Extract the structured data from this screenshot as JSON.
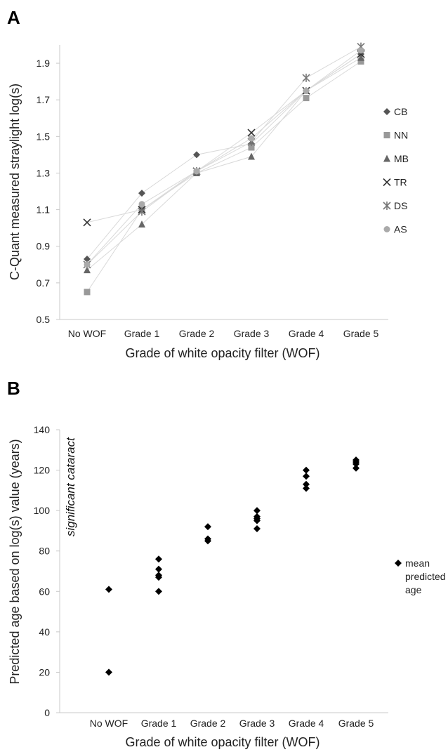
{
  "chart_data": [
    {
      "panel": "A",
      "type": "line",
      "categories": [
        "No WOF",
        "Grade 1",
        "Grade 2",
        "Grade 3",
        "Grade 4",
        "Grade 5"
      ],
      "xlabel": "Grade of white opacity filter (WOF)",
      "ylabel": "C-Quant measured straylight log(s)",
      "ylim": [
        0.5,
        2.0
      ],
      "yticks": [
        "0.5",
        "0.7",
        "0.9",
        "1.1",
        "1.3",
        "1.5",
        "1.7",
        "1.9"
      ],
      "grid": false,
      "legend_position": "right",
      "series": [
        {
          "name": "CB",
          "marker": "diamond",
          "color": "#555555",
          "values": [
            0.83,
            1.19,
            1.4,
            1.46,
            1.75,
            1.95
          ]
        },
        {
          "name": "NN",
          "marker": "square",
          "color": "#999999",
          "values": [
            0.65,
            1.1,
            1.3,
            1.44,
            1.71,
            1.91
          ]
        },
        {
          "name": "MB",
          "marker": "triangle",
          "color": "#666666",
          "values": [
            0.77,
            1.02,
            1.3,
            1.39,
            1.75,
            1.93
          ]
        },
        {
          "name": "TR",
          "marker": "x",
          "color": "#333333",
          "values": [
            1.03,
            1.1,
            1.31,
            1.52,
            1.75,
            1.95
          ]
        },
        {
          "name": "DS",
          "marker": "star",
          "color": "#777777",
          "values": [
            0.8,
            1.09,
            1.31,
            1.47,
            1.82,
            1.99
          ]
        },
        {
          "name": "AS",
          "marker": "circle",
          "color": "#aaaaaa",
          "values": [
            0.8,
            1.13,
            1.31,
            1.49,
            1.75,
            1.97
          ]
        }
      ]
    },
    {
      "panel": "B",
      "type": "scatter",
      "categories": [
        "No WOF",
        "Grade 1",
        "Grade 2",
        "Grade 3",
        "Grade 4",
        "Grade 5"
      ],
      "xlabel": "Grade of white opacity filter (WOF)",
      "ylabel": "Predicted age  based on log(s) value (years)",
      "ylim": [
        0,
        140
      ],
      "yticks": [
        "0",
        "20",
        "40",
        "60",
        "80",
        "100",
        "120",
        "140"
      ],
      "grid": false,
      "annotation": "significant cataract",
      "legend_position": "right",
      "series": [
        {
          "name": "mean predicted age",
          "name_lines": [
            "mean",
            "predicted",
            "age"
          ],
          "marker": "diamond",
          "color": "#000000",
          "points": [
            {
              "x": "No WOF",
              "y": 61
            },
            {
              "x": "No WOF",
              "y": 20
            },
            {
              "x": "Grade 1",
              "y": 76
            },
            {
              "x": "Grade 1",
              "y": 71
            },
            {
              "x": "Grade 1",
              "y": 68
            },
            {
              "x": "Grade 1",
              "y": 67
            },
            {
              "x": "Grade 1",
              "y": 60
            },
            {
              "x": "Grade 2",
              "y": 92
            },
            {
              "x": "Grade 2",
              "y": 86
            },
            {
              "x": "Grade 2",
              "y": 85
            },
            {
              "x": "Grade 3",
              "y": 100
            },
            {
              "x": "Grade 3",
              "y": 97
            },
            {
              "x": "Grade 3",
              "y": 96
            },
            {
              "x": "Grade 3",
              "y": 95
            },
            {
              "x": "Grade 3",
              "y": 91
            },
            {
              "x": "Grade 4",
              "y": 120
            },
            {
              "x": "Grade 4",
              "y": 117
            },
            {
              "x": "Grade 4",
              "y": 113
            },
            {
              "x": "Grade 4",
              "y": 111
            },
            {
              "x": "Grade 5",
              "y": 125
            },
            {
              "x": "Grade 5",
              "y": 124
            },
            {
              "x": "Grade 5",
              "y": 123
            },
            {
              "x": "Grade 5",
              "y": 121
            }
          ]
        }
      ]
    }
  ]
}
